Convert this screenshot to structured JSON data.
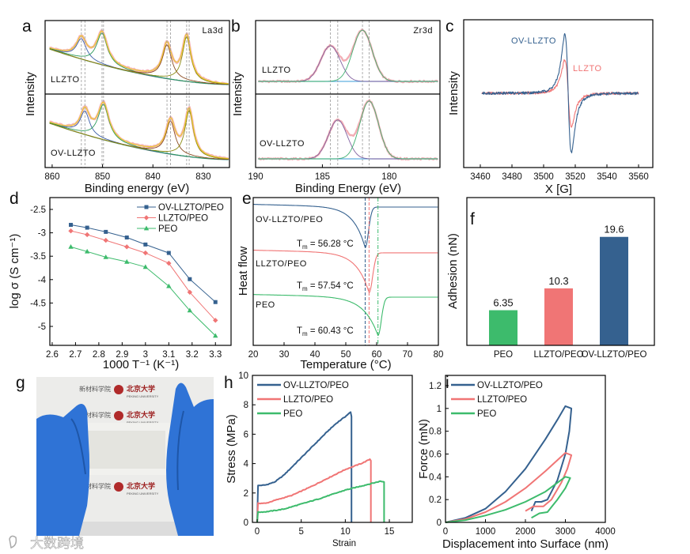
{
  "panel_letters": [
    "a",
    "b",
    "c",
    "d",
    "e",
    "f",
    "g",
    "h",
    "i"
  ],
  "colors": {
    "ov": "#35618f",
    "llzto": "#f07575",
    "peo": "#3dbb6c"
  },
  "photo": {
    "lettering": [
      "北京大学",
      "PEKING UNIVERSITY",
      "新材料学院",
      "School of Advanced Materials"
    ]
  },
  "watermark": {
    "text": "大数跨境"
  },
  "chart_data": [
    {
      "type": "line",
      "title": "La3d",
      "xlabel": "Binding energy (eV)",
      "ylabel": "Intensity",
      "xlim": [
        861.4,
        824.8
      ],
      "xticks": [
        860,
        850,
        840,
        830
      ],
      "samples": [
        {
          "name": "LLZTO",
          "ylim": [
            -0.2,
            1.35
          ],
          "background_amp": 0.78,
          "peaks": [
            {
              "center": 854.2,
              "height": 0.43,
              "hwhm": 1.2
            },
            {
              "center": 850.1,
              "height": 0.67,
              "hwhm": 1.3
            },
            {
              "center": 837.2,
              "height": 0.72,
              "hwhm": 1.1
            },
            {
              "center": 833.3,
              "height": 0.95,
              "hwhm": 1.0
            }
          ]
        },
        {
          "name": "OV-LLZTO",
          "ylim": [
            -0.167,
            1.383
          ],
          "background_amp": 0.8,
          "peaks": [
            {
              "center": 853.5,
              "height": 0.5,
              "hwhm": 1.1
            },
            {
              "center": 849.8,
              "height": 0.75,
              "hwhm": 1.3
            },
            {
              "center": 836.5,
              "height": 0.7,
              "hwhm": 1.1
            },
            {
              "center": 832.8,
              "height": 0.98,
              "hwhm": 1.0
            }
          ]
        }
      ]
    },
    {
      "type": "line",
      "title": "Zr3d",
      "xlabel": "Binding Energy (eV)",
      "ylabel": "Intensity",
      "xlim": [
        190,
        176.2
      ],
      "xticks": [
        190,
        185,
        180
      ],
      "samples": [
        {
          "name": "LLZTO",
          "ylim": [
            -0.267,
            1.283
          ],
          "peaks": [
            {
              "center": 184.4,
              "height": 0.75,
              "sigma": 0.72
            },
            {
              "center": 182.0,
              "height": 1.08,
              "sigma": 0.72
            }
          ]
        },
        {
          "name": "OV-LLZTO",
          "ylim": [
            -0.183,
            1.367
          ],
          "peaks": [
            {
              "center": 183.85,
              "height": 0.82,
              "sigma": 0.7
            },
            {
              "center": 181.5,
              "height": 1.22,
              "sigma": 0.7
            }
          ]
        }
      ]
    },
    {
      "type": "line",
      "xlabel": "X [G]",
      "ylabel": "Intensity",
      "xlim": [
        3449.5,
        3569
      ],
      "ylim": [
        -1.253,
        1.24
      ],
      "xticks": [
        3460,
        3480,
        3500,
        3520,
        3540,
        3560
      ],
      "x_range": [
        3461,
        3560
      ],
      "center": 3515.5,
      "width": 3.5,
      "series": [
        {
          "name": "LLZTO",
          "amplitude": 0.57
        },
        {
          "name": "OV-LLZTO",
          "amplitude": 1.0
        }
      ]
    },
    {
      "type": "line",
      "xlabel": "1000 T⁻¹ (K⁻¹)",
      "ylabel": "log σ (S cm⁻¹)",
      "xlim": [
        2.59,
        3.367
      ],
      "ylim": [
        -5.405,
        -2.247
      ],
      "xticks": [
        2.6,
        2.7,
        2.8,
        2.9,
        3,
        3.1,
        3.2,
        3.3
      ],
      "yticks": [
        -2.5,
        -3,
        -3.5,
        -4,
        -4.5,
        -5
      ],
      "x": [
        2.68,
        2.75,
        2.83,
        2.92,
        3.0,
        3.1,
        3.19,
        3.3
      ],
      "legend_position": "top-right",
      "series": [
        {
          "name": "OV-LLZTO/PEO",
          "values": [
            -2.83,
            -2.89,
            -2.98,
            -3.1,
            -3.25,
            -3.43,
            -3.99,
            -4.48
          ]
        },
        {
          "name": "LLZTO/PEO",
          "values": [
            -2.96,
            -3.04,
            -3.16,
            -3.3,
            -3.43,
            -3.65,
            -4.27,
            -4.87
          ]
        },
        {
          "name": "PEO",
          "values": [
            -3.3,
            -3.4,
            -3.52,
            -3.62,
            -3.73,
            -4.14,
            -4.66,
            -5.2
          ]
        }
      ]
    },
    {
      "type": "line",
      "xlabel": "Temperature (°C)",
      "ylabel": "Heat flow",
      "xlim": [
        20,
        80
      ],
      "ylim": [
        0,
        10
      ],
      "xticks": [
        20,
        30,
        40,
        50,
        60,
        70,
        80
      ],
      "tm_symbol": "T",
      "tm_sub": "m",
      "series": [
        {
          "name": "OV-LLZTO/PEO",
          "tm": 56.28,
          "tm_label": " = 56.28 °C",
          "offset": 9.36,
          "depth": 2.75,
          "s1": 3.8,
          "s2": 1.5
        },
        {
          "name": "LLZTO/PEO",
          "tm": 57.54,
          "tm_label": " = 57.54 °C",
          "offset": 6.26,
          "depth": 2.7,
          "s1": 4.0,
          "s2": 1.6
        },
        {
          "name": "PEO",
          "tm": 60.43,
          "tm_label": " = 60.43 °C",
          "offset": 3.26,
          "depth": 2.6,
          "s1": 4.5,
          "s2": 1.5
        }
      ]
    },
    {
      "type": "bar",
      "xlabel": "",
      "ylabel": "Adhesion (nN)",
      "ylim": [
        0,
        26.7
      ],
      "categories": [
        "PEO",
        "LLZTO/PEO",
        "OV-LLZTO/PEO"
      ],
      "values": [
        6.35,
        10.3,
        19.6
      ],
      "value_labels": [
        "6.35",
        "10.3",
        "19.6"
      ]
    },
    {
      "type": "line",
      "xlabel": "Strain",
      "ylabel": "Stress (MPa)",
      "xlim": [
        -0.54,
        17.6
      ],
      "ylim": [
        0,
        10
      ],
      "xticks": [
        0,
        5,
        10,
        15
      ],
      "yticks": [
        0,
        2,
        4,
        6,
        8,
        10
      ],
      "legend_position": "top-left",
      "series": [
        {
          "name": "OV-LLZTO/PEO",
          "points": [
            [
              0,
              0
            ],
            [
              0.1,
              2.5
            ],
            [
              1,
              2.55
            ],
            [
              2,
              2.75
            ],
            [
              3,
              3.2
            ],
            [
              4,
              3.8
            ],
            [
              5,
              4.4
            ],
            [
              6,
              5.0
            ],
            [
              7,
              5.6
            ],
            [
              8,
              6.2
            ],
            [
              9,
              6.75
            ],
            [
              10,
              7.2
            ],
            [
              10.6,
              7.5
            ],
            [
              10.7,
              7.2
            ],
            [
              10.7,
              0
            ]
          ]
        },
        {
          "name": "LLZTO/PEO",
          "points": [
            [
              0,
              0
            ],
            [
              0.1,
              1.3
            ],
            [
              1,
              1.3
            ],
            [
              2,
              1.5
            ],
            [
              4,
              1.85
            ],
            [
              6,
              2.4
            ],
            [
              8,
              3.0
            ],
            [
              10,
              3.6
            ],
            [
              12,
              4.05
            ],
            [
              12.8,
              4.3
            ],
            [
              12.9,
              4.2
            ],
            [
              12.9,
              0
            ]
          ]
        },
        {
          "name": "PEO",
          "points": [
            [
              0,
              0
            ],
            [
              0.1,
              0.7
            ],
            [
              1,
              0.72
            ],
            [
              3,
              0.9
            ],
            [
              5,
              1.25
            ],
            [
              7,
              1.6
            ],
            [
              10,
              2.2
            ],
            [
              12,
              2.5
            ],
            [
              14,
              2.8
            ],
            [
              14.4,
              2.75
            ],
            [
              14.4,
              0
            ]
          ]
        }
      ]
    },
    {
      "type": "line",
      "xlabel": "Displacement into Surface (nm)",
      "ylabel": "Force (mN)",
      "xlim": [
        0,
        4000
      ],
      "ylim": [
        0,
        1.29
      ],
      "xticks": [
        0,
        1000,
        2000,
        3000,
        4000
      ],
      "yticks": [
        0,
        0.2,
        0.4,
        0.6,
        0.8,
        1,
        1.2
      ],
      "legend_position": "top-left",
      "series": [
        {
          "name": "OV-LLZTO/PEO",
          "points": [
            [
              0,
              0
            ],
            [
              500,
              0.04
            ],
            [
              1000,
              0.12
            ],
            [
              1500,
              0.27
            ],
            [
              2000,
              0.47
            ],
            [
              2500,
              0.73
            ],
            [
              2800,
              0.9
            ],
            [
              3000,
              1.02
            ],
            [
              3150,
              1.0
            ],
            [
              3100,
              0.8
            ],
            [
              3000,
              0.6
            ],
            [
              2800,
              0.37
            ],
            [
              2550,
              0.2
            ],
            [
              2400,
              0.18
            ],
            [
              2250,
              0.18
            ],
            [
              2150,
              0.1
            ]
          ]
        },
        {
          "name": "LLZTO/PEO",
          "points": [
            [
              0,
              0
            ],
            [
              500,
              0.03
            ],
            [
              1000,
              0.09
            ],
            [
              1500,
              0.18
            ],
            [
              2000,
              0.3
            ],
            [
              2500,
              0.45
            ],
            [
              3000,
              0.61
            ],
            [
              3150,
              0.59
            ],
            [
              3050,
              0.47
            ],
            [
              2900,
              0.35
            ],
            [
              2650,
              0.2
            ],
            [
              2450,
              0.14
            ],
            [
              2200,
              0.14
            ],
            [
              2000,
              0.1
            ]
          ]
        },
        {
          "name": "PEO",
          "points": [
            [
              0,
              0
            ],
            [
              500,
              0.02
            ],
            [
              1000,
              0.06
            ],
            [
              1500,
              0.11
            ],
            [
              2000,
              0.18
            ],
            [
              2500,
              0.27
            ],
            [
              3000,
              0.4
            ],
            [
              3120,
              0.39
            ],
            [
              3000,
              0.3
            ],
            [
              2800,
              0.2
            ],
            [
              2550,
              0.09
            ],
            [
              2350,
              0.08
            ],
            [
              2150,
              0.04
            ]
          ]
        }
      ]
    }
  ]
}
